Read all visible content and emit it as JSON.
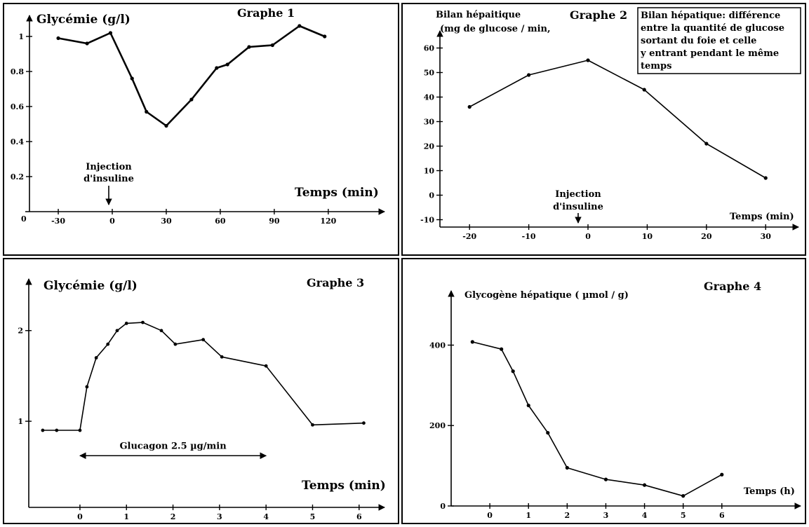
{
  "chart_data": [
    {
      "type": "line",
      "title": "Graphe 1",
      "ylabel": "Glycémie (g/l)",
      "xlabel": "Temps (min)",
      "x_ticks": [
        "-30",
        "0",
        "30",
        "60",
        "90",
        "120"
      ],
      "y_ticks": [
        "0.2",
        "0.4",
        "0.6",
        "0.8",
        "1"
      ],
      "origin_label": "0",
      "xlim": [
        -46,
        145
      ],
      "ylim": [
        0,
        1.12
      ],
      "x": [
        -30,
        -14,
        -1,
        11,
        19,
        30,
        44,
        58,
        64,
        76,
        89,
        104,
        118
      ],
      "values": [
        0.99,
        0.96,
        1.02,
        0.76,
        0.57,
        0.49,
        0.64,
        0.82,
        0.84,
        0.94,
        0.95,
        1.06,
        1.0
      ],
      "annotation": {
        "lines": [
          "Injection",
          "d'insuline"
        ],
        "x": 0
      }
    },
    {
      "type": "line",
      "title": "Graphe 2",
      "ylabel_lines": [
        "Bilan hépaitique",
        "(mg de glucose / min,"
      ],
      "xlabel": "Temps (min)",
      "x_ticks": [
        "-20",
        "-10",
        "0",
        "10",
        "20",
        "30"
      ],
      "y_ticks": [
        "-10",
        "0",
        "10",
        "20",
        "30",
        "40",
        "50",
        "60"
      ],
      "xlim": [
        -25,
        34
      ],
      "ylim": [
        -13,
        67
      ],
      "x": [
        -20,
        -10,
        0,
        9.5,
        20,
        30
      ],
      "values": [
        36,
        49,
        55,
        43,
        21,
        7
      ],
      "annotation": {
        "lines": [
          "Injection",
          "d'insuline"
        ],
        "x": 0
      },
      "note_lines": [
        "Bilan hépatique: différence",
        "entre la quantité de glucose",
        "sortant du foie et celle",
        "y entrant pendant le même",
        "temps"
      ]
    },
    {
      "type": "line",
      "title": "Graphe 3",
      "ylabel": "Glycémie (g/l)",
      "xlabel": "Temps (min)",
      "x_ticks": [
        "0",
        "1",
        "2",
        "3",
        "4",
        "5",
        "6"
      ],
      "y_ticks": [
        "1",
        "2"
      ],
      "xlim": [
        -1.1,
        6.35
      ],
      "ylim": [
        0.05,
        2.57
      ],
      "x": [
        -0.8,
        -0.5,
        0,
        0.15,
        0.35,
        0.6,
        0.8,
        1,
        1.35,
        1.75,
        2.05,
        2.65,
        3.05,
        4,
        5,
        6.1
      ],
      "values": [
        0.9,
        0.9,
        0.9,
        1.38,
        1.7,
        1.85,
        2.0,
        2.08,
        2.09,
        2.0,
        1.85,
        1.9,
        1.71,
        1.61,
        0.96,
        0.98
      ],
      "annotation": {
        "text": "Glucagon 2.5 µg/min",
        "from": 0,
        "to": 4
      }
    },
    {
      "type": "line",
      "title": "Graphe 4",
      "ylabel": "Glycogène hépatique ( µmol / g)",
      "xlabel": "Temps (h)",
      "x_ticks": [
        "0",
        "1",
        "2",
        "3",
        "4",
        "5",
        "6"
      ],
      "y_ticks": [
        "0",
        "200",
        "400"
      ],
      "xlim": [
        -1,
        7.8
      ],
      "ylim": [
        0,
        535
      ],
      "x": [
        -0.45,
        0.3,
        0.6,
        1,
        1.5,
        2,
        3,
        4,
        5,
        6
      ],
      "values": [
        408,
        390,
        335,
        250,
        182,
        95,
        66,
        52,
        25,
        78
      ]
    }
  ]
}
